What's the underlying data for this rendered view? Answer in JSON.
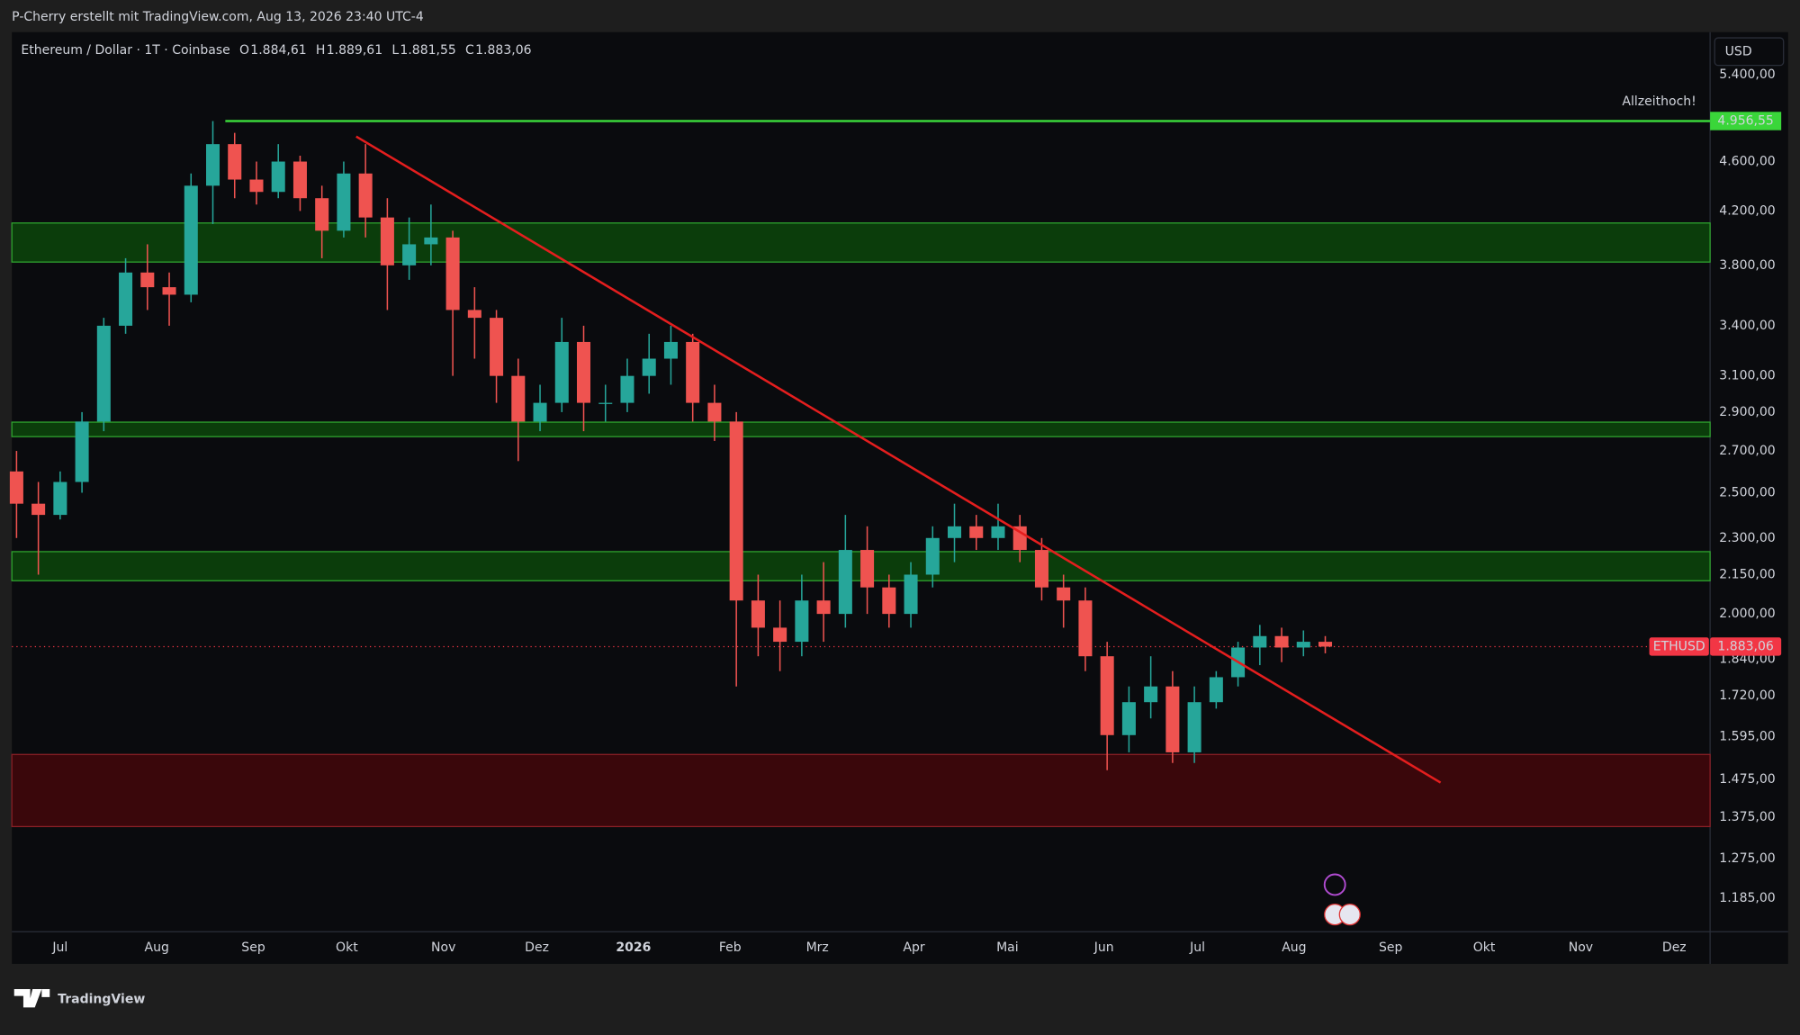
{
  "header": {
    "credit": "P-Cherry erstellt mit TradingView.com, Aug 13, 2026 23:40 UTC-4",
    "symbol": "Ethereum / Dollar · 1T · Coinbase",
    "ohlc": [
      {
        "key": "O",
        "value": "1.884,61"
      },
      {
        "key": "H",
        "value": "1.889,61"
      },
      {
        "key": "L",
        "value": "1.881,55"
      },
      {
        "key": "C",
        "value": "1.883,06"
      }
    ],
    "currency": "USD",
    "brand": "TradingView"
  },
  "chart_data": {
    "type": "candlestick",
    "log_scale": true,
    "up_color": "#26a69a",
    "down_color": "#ef5350",
    "xlim": [
      -15.5,
      529.5
    ],
    "ylim": [
      1114,
      5838
    ],
    "xticks": [
      {
        "value": 0,
        "label": "Jul"
      },
      {
        "value": 31,
        "label": "Aug"
      },
      {
        "value": 62,
        "label": "Sep"
      },
      {
        "value": 92,
        "label": "Okt"
      },
      {
        "value": 123,
        "label": "Nov"
      },
      {
        "value": 153,
        "label": "Dez"
      },
      {
        "value": 184,
        "label": "2026"
      },
      {
        "value": 215,
        "label": "Feb"
      },
      {
        "value": 243,
        "label": "Mrz"
      },
      {
        "value": 274,
        "label": "Apr"
      },
      {
        "value": 304,
        "label": "Mai"
      },
      {
        "value": 335,
        "label": "Jun"
      },
      {
        "value": 365,
        "label": "Jul"
      },
      {
        "value": 396,
        "label": "Aug"
      },
      {
        "value": 427,
        "label": "Sep"
      },
      {
        "value": 457,
        "label": "Okt"
      },
      {
        "value": 488,
        "label": "Nov"
      },
      {
        "value": 518,
        "label": "Dez"
      }
    ],
    "yticks": [
      {
        "value": 5400,
        "label": "5.400,00"
      },
      {
        "value": 4600,
        "label": "4.600,00"
      },
      {
        "value": 4200,
        "label": "4.200,00"
      },
      {
        "value": 3800,
        "label": "3.800,00"
      },
      {
        "value": 3400,
        "label": "3.400,00"
      },
      {
        "value": 3100,
        "label": "3.100,00"
      },
      {
        "value": 2900,
        "label": "2.900,00"
      },
      {
        "value": 2700,
        "label": "2.700,00"
      },
      {
        "value": 2500,
        "label": "2.500,00"
      },
      {
        "value": 2300,
        "label": "2.300,00"
      },
      {
        "value": 2150,
        "label": "2.150,00"
      },
      {
        "value": 2000,
        "label": "2.000,00"
      },
      {
        "value": 1840,
        "label": "1.840,00"
      },
      {
        "value": 1720,
        "label": "1.720,00"
      },
      {
        "value": 1595,
        "label": "1.595,00"
      },
      {
        "value": 1475,
        "label": "1.475,00"
      },
      {
        "value": 1375,
        "label": "1.375,00"
      },
      {
        "value": 1275,
        "label": "1.275,00"
      },
      {
        "value": 1185,
        "label": "1.185,00"
      }
    ],
    "x": [
      -14,
      -7,
      0,
      7,
      14,
      21,
      28,
      35,
      42,
      49,
      56,
      63,
      70,
      77,
      84,
      91,
      98,
      105,
      112,
      119,
      126,
      133,
      140,
      147,
      154,
      161,
      168,
      175,
      182,
      189,
      196,
      203,
      210,
      217,
      224,
      231,
      238,
      245,
      252,
      259,
      266,
      273,
      280,
      287,
      294,
      301,
      308,
      315,
      322,
      329,
      336,
      343,
      350,
      357,
      364,
      371,
      378,
      385,
      392,
      399,
      406
    ],
    "open": [
      2600,
      2450,
      2400,
      2550,
      2850,
      3400,
      3750,
      3650,
      3600,
      4400,
      4750,
      4450,
      4350,
      4600,
      4300,
      4050,
      4500,
      4150,
      3800,
      3950,
      4000,
      3500,
      3450,
      3100,
      2850,
      2950,
      3300,
      2950,
      2950,
      3100,
      3200,
      3300,
      2950,
      2850,
      2050,
      1950,
      1900,
      2050,
      2000,
      2250,
      2100,
      2000,
      2150,
      2300,
      2350,
      2300,
      2350,
      2250,
      2100,
      2050,
      1850,
      1600,
      1700,
      1750,
      1550,
      1700,
      1780,
      1880,
      1920,
      1880,
      1900
    ],
    "high": [
      2700,
      2550,
      2600,
      2900,
      3450,
      3850,
      3950,
      3750,
      4500,
      4956,
      4850,
      4600,
      4750,
      4650,
      4400,
      4600,
      4750,
      4300,
      4150,
      4250,
      4050,
      3650,
      3500,
      3200,
      3050,
      3450,
      3400,
      3050,
      3200,
      3350,
      3400,
      3350,
      3050,
      2900,
      2150,
      2050,
      2150,
      2200,
      2400,
      2350,
      2150,
      2200,
      2350,
      2450,
      2400,
      2450,
      2400,
      2300,
      2150,
      2100,
      1900,
      1750,
      1850,
      1800,
      1750,
      1800,
      1900,
      1960,
      1950,
      1940,
      1920
    ],
    "low": [
      2300,
      2150,
      2380,
      2500,
      2800,
      3350,
      3500,
      3400,
      3550,
      4100,
      4300,
      4250,
      4300,
      4200,
      3850,
      4000,
      4000,
      3500,
      3700,
      3800,
      3100,
      3200,
      2950,
      2650,
      2800,
      2900,
      2800,
      2850,
      2900,
      3000,
      3050,
      2850,
      2750,
      1750,
      1850,
      1800,
      1850,
      1900,
      1950,
      2000,
      1950,
      1950,
      2100,
      2200,
      2250,
      2250,
      2200,
      2050,
      1950,
      1800,
      1500,
      1550,
      1650,
      1520,
      1520,
      1680,
      1750,
      1820,
      1830,
      1850,
      1860
    ],
    "close": [
      2450,
      2400,
      2550,
      2850,
      3400,
      3750,
      3650,
      3600,
      4400,
      4750,
      4450,
      4350,
      4600,
      4300,
      4050,
      4500,
      4150,
      3800,
      3950,
      4000,
      3500,
      3450,
      3100,
      2850,
      2950,
      3300,
      2950,
      2950,
      3100,
      3200,
      3300,
      2950,
      2850,
      2050,
      1950,
      1900,
      2050,
      2000,
      2250,
      2100,
      2000,
      2150,
      2300,
      2350,
      2300,
      2350,
      2250,
      2100,
      2050,
      1850,
      1600,
      1700,
      1750,
      1550,
      1700,
      1780,
      1880,
      1920,
      1880,
      1900,
      1883.06
    ],
    "zones": [
      {
        "low": 3823,
        "high": 4108,
        "color": "#0b3d0b"
      },
      {
        "low": 2772,
        "high": 2847,
        "color": "#0b3d0b"
      },
      {
        "low": 2126,
        "high": 2243,
        "color": "#0b3d0b"
      },
      {
        "low": 1352,
        "high": 1544,
        "color": "#3a070b"
      }
    ],
    "ath": {
      "value": 4956.55,
      "value_label": "4.956,55",
      "start_x": 53,
      "label": "Allzeithoch!",
      "color": "#3ad63a"
    },
    "trend": {
      "x": [
        95,
        443
      ],
      "values": [
        4817,
        1466
      ],
      "color": "#e41e1e"
    },
    "last": {
      "name": "ETHUSD",
      "value": 1883.06,
      "value_label": "1.883,06",
      "color": "#f23645"
    }
  }
}
